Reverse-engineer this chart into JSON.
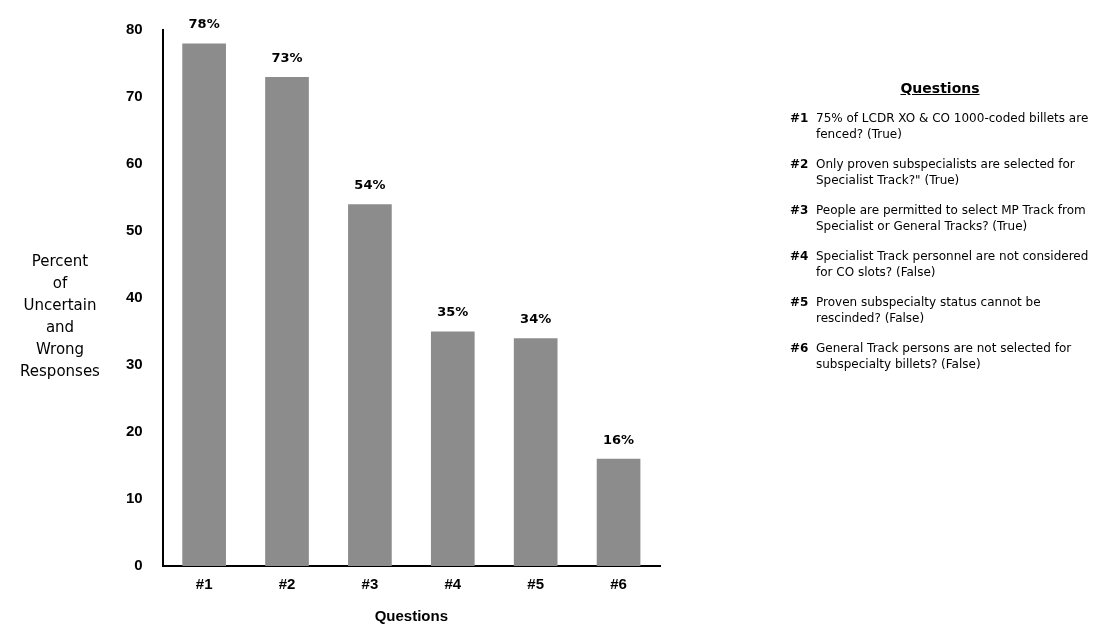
{
  "chart_data": {
    "type": "bar",
    "xlabel": "Questions",
    "ylabel": "Percent of Uncertain and Wrong Responses",
    "categories": [
      "#1",
      "#2",
      "#3",
      "#4",
      "#5",
      "#6"
    ],
    "values": [
      78,
      73,
      54,
      35,
      34,
      16
    ],
    "value_labels": [
      "78%",
      "73%",
      "54%",
      "35%",
      "34%",
      "16%"
    ],
    "color": "#8c8c8c",
    "ylim": [
      0,
      80
    ],
    "yticks": [
      0,
      10,
      20,
      30,
      40,
      50,
      60,
      70,
      80
    ],
    "grid": false,
    "legend": false,
    "annotations": [
      "Questions",
      "75% of LCDR XO & CO 1000-coded billets are fenced? (True)",
      "Only proven subspecialists are selected for Specialist Track?\" (True)",
      "People are permitted to select MP Track from Specialist or General Tracks? (True)",
      "Specialist Track personnel are not considered for CO slots? (False)",
      "Proven subspecialty status cannot be rescinded? (False)",
      "General Track persons are not selected for subspecialty billets? (False)"
    ]
  }
}
